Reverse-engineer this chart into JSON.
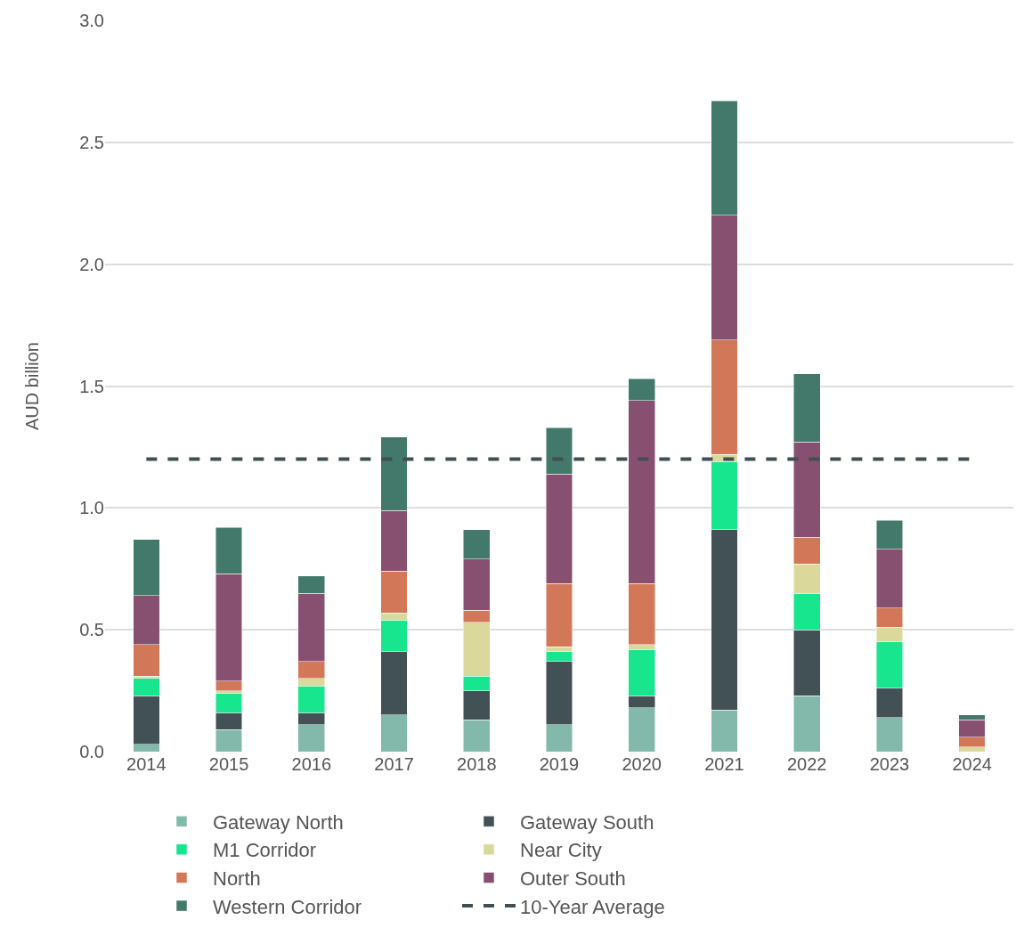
{
  "chart_data": {
    "type": "bar",
    "stacked": true,
    "ylabel": "AUD billion",
    "categories": [
      "2014",
      "2015",
      "2016",
      "2017",
      "2018",
      "2019",
      "2020",
      "2021",
      "2022",
      "2023",
      "2024"
    ],
    "series": [
      {
        "name": "Gateway North",
        "color": "#82b9aa",
        "values": [
          0.03,
          0.09,
          0.11,
          0.15,
          0.13,
          0.11,
          0.18,
          0.17,
          0.23,
          0.14,
          0.0
        ]
      },
      {
        "name": "Gateway South",
        "color": "#425155",
        "values": [
          0.2,
          0.07,
          0.05,
          0.26,
          0.12,
          0.26,
          0.05,
          0.74,
          0.27,
          0.12,
          0.0
        ]
      },
      {
        "name": "M1 Corridor",
        "color": "#17e68f",
        "values": [
          0.07,
          0.08,
          0.11,
          0.13,
          0.06,
          0.04,
          0.19,
          0.28,
          0.15,
          0.19,
          0.0
        ]
      },
      {
        "name": "Near City",
        "color": "#dad89b",
        "values": [
          0.01,
          0.01,
          0.03,
          0.03,
          0.22,
          0.02,
          0.02,
          0.03,
          0.12,
          0.06,
          0.02
        ]
      },
      {
        "name": "North",
        "color": "#d27858",
        "values": [
          0.13,
          0.04,
          0.07,
          0.17,
          0.05,
          0.26,
          0.25,
          0.47,
          0.11,
          0.08,
          0.04
        ]
      },
      {
        "name": "Outer South",
        "color": "#885070",
        "values": [
          0.2,
          0.44,
          0.28,
          0.25,
          0.21,
          0.45,
          0.75,
          0.51,
          0.39,
          0.24,
          0.07
        ]
      },
      {
        "name": "Western Corridor",
        "color": "#42796b",
        "values": [
          0.23,
          0.19,
          0.07,
          0.3,
          0.12,
          0.19,
          0.09,
          0.47,
          0.28,
          0.12,
          0.02
        ]
      },
      {
        "name": "10-Year Average",
        "type": "line",
        "color": "#404f52",
        "line_style": "dashed",
        "marker": "none",
        "values": [
          1.2,
          1.2,
          1.2,
          1.2,
          1.2,
          1.2,
          1.2,
          1.2,
          1.2,
          1.2,
          1.2
        ]
      }
    ],
    "ylim": [
      0,
      3.0
    ],
    "yticks": [
      {
        "value": 0,
        "label": "0.0"
      },
      {
        "value": 0.5,
        "label": "0.5"
      },
      {
        "value": 1,
        "label": "1.0"
      },
      {
        "value": 1.5,
        "label": "1.5"
      },
      {
        "value": 2,
        "label": "2.0"
      },
      {
        "value": 2.5,
        "label": "2.5"
      },
      {
        "value": 3,
        "label": "3.0"
      }
    ],
    "grid": "y",
    "legend": "bottom"
  }
}
